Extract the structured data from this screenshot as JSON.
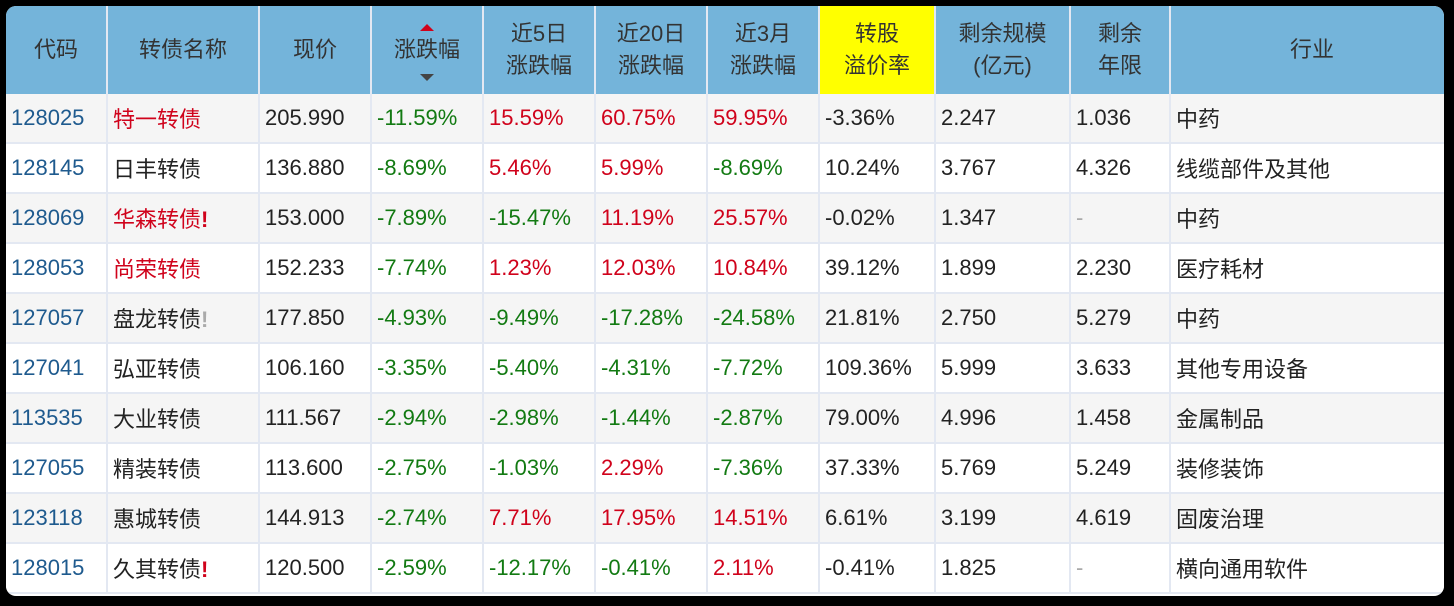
{
  "headers": [
    {
      "l1": "代码",
      "l2": ""
    },
    {
      "l1": "转债名称",
      "l2": ""
    },
    {
      "l1": "现价",
      "l2": ""
    },
    {
      "l1": "涨跌幅",
      "l2": ""
    },
    {
      "l1": "近5日",
      "l2": "涨跌幅"
    },
    {
      "l1": "近20日",
      "l2": "涨跌幅"
    },
    {
      "l1": "近3月",
      "l2": "涨跌幅"
    },
    {
      "l1": "转股",
      "l2": "溢价率"
    },
    {
      "l1": "剩余规模",
      "l2": "(亿元)"
    },
    {
      "l1": "剩余",
      "l2": "年限"
    },
    {
      "l1": "行业",
      "l2": ""
    }
  ],
  "rows": [
    {
      "code": "128025",
      "name": "特一转债",
      "name_color": "red",
      "mark": "",
      "price": "205.990",
      "chg": "-11.59%",
      "chg5": "15.59%",
      "chg20": "60.75%",
      "chg3m": "59.95%",
      "premium": "-3.36%",
      "size": "2.247",
      "years": "1.036",
      "industry": "中药"
    },
    {
      "code": "128145",
      "name": "日丰转债",
      "name_color": "",
      "mark": "",
      "price": "136.880",
      "chg": "-8.69%",
      "chg5": "5.46%",
      "chg20": "5.99%",
      "chg3m": "-8.69%",
      "premium": "10.24%",
      "size": "3.767",
      "years": "4.326",
      "industry": "线缆部件及其他"
    },
    {
      "code": "128069",
      "name": "华森转债",
      "name_color": "red",
      "mark": "!",
      "mark_color": "red",
      "price": "153.000",
      "chg": "-7.89%",
      "chg5": "-15.47%",
      "chg20": "11.19%",
      "chg3m": "25.57%",
      "premium": "-0.02%",
      "size": "1.347",
      "years": "-",
      "industry": "中药"
    },
    {
      "code": "128053",
      "name": "尚荣转债",
      "name_color": "red",
      "mark": "",
      "price": "152.233",
      "chg": "-7.74%",
      "chg5": "1.23%",
      "chg20": "12.03%",
      "chg3m": "10.84%",
      "premium": "39.12%",
      "size": "1.899",
      "years": "2.230",
      "industry": "医疗耗材"
    },
    {
      "code": "127057",
      "name": "盘龙转债",
      "name_color": "",
      "mark": "!",
      "mark_color": "grey",
      "price": "177.850",
      "chg": "-4.93%",
      "chg5": "-9.49%",
      "chg20": "-17.28%",
      "chg3m": "-24.58%",
      "premium": "21.81%",
      "size": "2.750",
      "years": "5.279",
      "industry": "中药"
    },
    {
      "code": "127041",
      "name": "弘亚转债",
      "name_color": "",
      "mark": "",
      "price": "106.160",
      "chg": "-3.35%",
      "chg5": "-5.40%",
      "chg20": "-4.31%",
      "chg3m": "-7.72%",
      "premium": "109.36%",
      "size": "5.999",
      "years": "3.633",
      "industry": "其他专用设备"
    },
    {
      "code": "113535",
      "name": "大业转债",
      "name_color": "",
      "mark": "",
      "price": "111.567",
      "chg": "-2.94%",
      "chg5": "-2.98%",
      "chg20": "-1.44%",
      "chg3m": "-2.87%",
      "premium": "79.00%",
      "size": "4.996",
      "years": "1.458",
      "industry": "金属制品"
    },
    {
      "code": "127055",
      "name": "精装转债",
      "name_color": "",
      "mark": "",
      "price": "113.600",
      "chg": "-2.75%",
      "chg5": "-1.03%",
      "chg20": "2.29%",
      "chg3m": "-7.36%",
      "premium": "37.33%",
      "size": "5.769",
      "years": "5.249",
      "industry": "装修装饰"
    },
    {
      "code": "123118",
      "name": "惠城转债",
      "name_color": "",
      "mark": "",
      "price": "144.913",
      "chg": "-2.74%",
      "chg5": "7.71%",
      "chg20": "17.95%",
      "chg3m": "14.51%",
      "premium": "6.61%",
      "size": "3.199",
      "years": "4.619",
      "industry": "固废治理"
    },
    {
      "code": "128015",
      "name": "久其转债",
      "name_color": "",
      "mark": "!",
      "mark_color": "red",
      "price": "120.500",
      "chg": "-2.59%",
      "chg5": "-12.17%",
      "chg20": "-0.41%",
      "chg3m": "2.11%",
      "premium": "-0.41%",
      "size": "1.825",
      "years": "-",
      "industry": "横向通用软件"
    }
  ],
  "colors": {
    "header": "#74b4da",
    "highlight": "#ffff00",
    "up": "#d0021b",
    "down": "#127a12",
    "code": "#1e5a8e"
  }
}
